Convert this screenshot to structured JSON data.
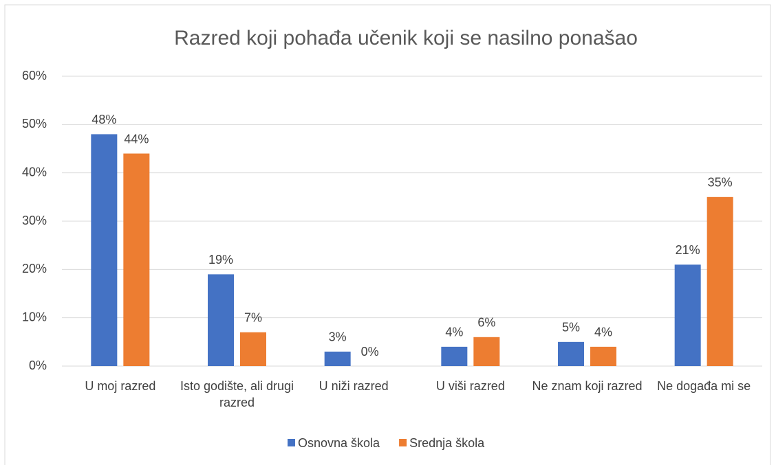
{
  "chart_data": {
    "type": "bar",
    "title": "Razred koji pohađa učenik koji se nasilno ponašao",
    "categories": [
      "U moj razred",
      "Isto godište, ali drugi razred",
      "U niži razred",
      "U viši razred",
      "Ne znam koji razred",
      "Ne događa mi se"
    ],
    "series": [
      {
        "name": "Osnovna škola",
        "color": "#4472c4",
        "values": [
          48,
          19,
          3,
          4,
          5,
          21
        ],
        "value_labels": [
          "48%",
          "19%",
          "3%",
          "4%",
          "5%",
          "21%"
        ]
      },
      {
        "name": "Srednja škola",
        "color": "#ed7d31",
        "values": [
          44,
          7,
          0,
          6,
          4,
          35
        ],
        "value_labels": [
          "44%",
          "7%",
          "0%",
          "6%",
          "4%",
          "35%"
        ]
      }
    ],
    "ylim": [
      0,
      60
    ],
    "yticks": [
      {
        "value": 0,
        "label": "0%"
      },
      {
        "value": 10,
        "label": "10%"
      },
      {
        "value": 20,
        "label": "20%"
      },
      {
        "value": 30,
        "label": "30%"
      },
      {
        "value": 40,
        "label": "40%"
      },
      {
        "value": 50,
        "label": "50%"
      },
      {
        "value": 60,
        "label": "60%"
      }
    ],
    "grid": true,
    "legend": "bottom"
  }
}
